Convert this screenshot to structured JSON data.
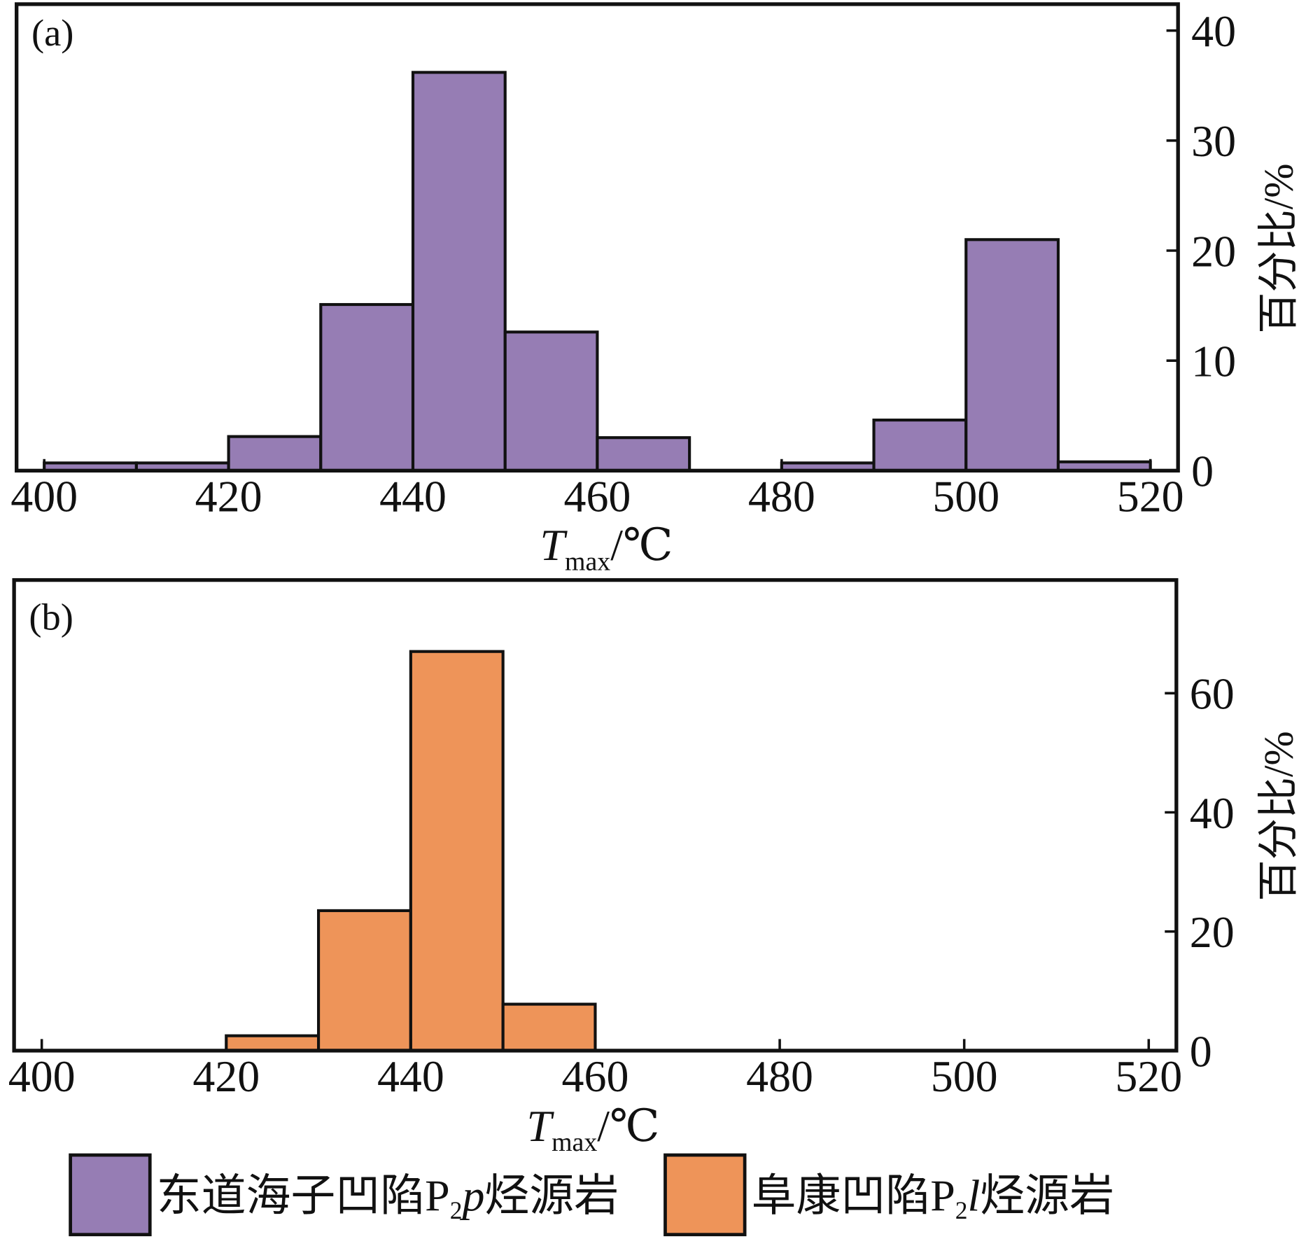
{
  "chart_data": [
    {
      "type": "bar",
      "panel_label": "(a)",
      "bin_edges": [
        400,
        410,
        420,
        430,
        440,
        450,
        460,
        470,
        480,
        490,
        500,
        510,
        520
      ],
      "series": [
        {
          "name": {
            "prefix": "东道海子凹陷P",
            "sub": "2",
            "italic": "p",
            "suffix": "烃源岩"
          },
          "color": "#967DB4",
          "values": [
            0.7,
            0.7,
            3.1,
            15.1,
            36.2,
            12.6,
            3.0,
            0,
            0.7,
            4.6,
            21.0,
            0.8
          ]
        }
      ],
      "xlabel": {
        "main": "T",
        "sub": "max",
        "unit": "/℃"
      },
      "ylabel": "百分比/%",
      "x_ticks": [
        400,
        420,
        440,
        460,
        480,
        500,
        520
      ],
      "y_ticks": [
        0,
        10,
        20,
        30,
        40
      ],
      "xlim": [
        397,
        523
      ],
      "ylim": [
        0,
        42.4
      ],
      "y_axis_side": "right",
      "grid": false
    },
    {
      "type": "bar",
      "panel_label": "(b)",
      "bin_edges": [
        400,
        410,
        420,
        430,
        440,
        450,
        460,
        470,
        480,
        490,
        500,
        510,
        520
      ],
      "series": [
        {
          "name": {
            "prefix": "阜康凹陷P",
            "sub": "2",
            "italic": "l",
            "suffix": "烃源岩"
          },
          "color": "#EE9459",
          "values": [
            0,
            0,
            2.5,
            23.5,
            67.0,
            7.8,
            0,
            0,
            0,
            0,
            0,
            0
          ]
        }
      ],
      "xlabel": {
        "main": "T",
        "sub": "max",
        "unit": "/℃"
      },
      "ylabel": "百分比/%",
      "x_ticks": [
        400,
        420,
        440,
        460,
        480,
        500,
        520
      ],
      "y_ticks": [
        0,
        20,
        40,
        60
      ],
      "xlim": [
        397,
        523
      ],
      "ylim": [
        0,
        79
      ],
      "y_axis_side": "right",
      "grid": false
    }
  ],
  "legend": {
    "position": "bottom"
  }
}
